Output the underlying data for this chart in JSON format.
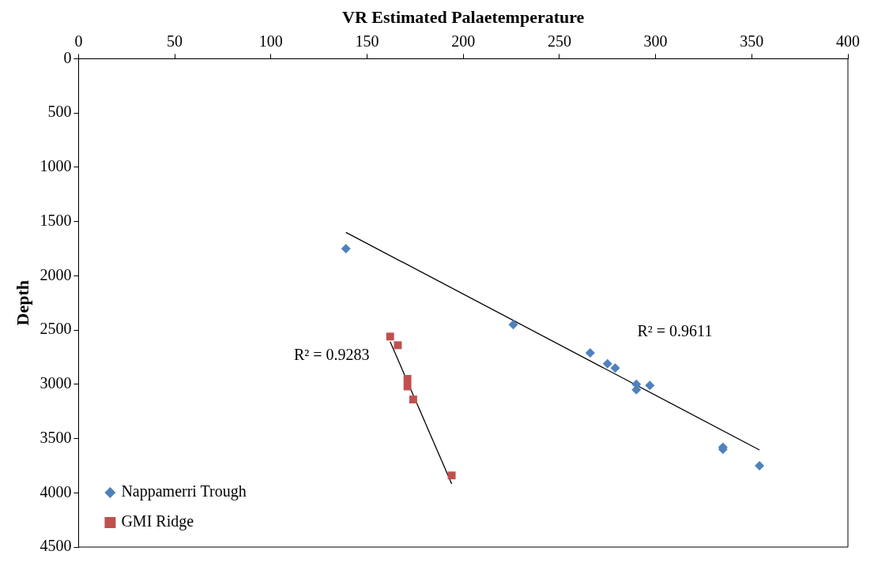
{
  "chart_data": {
    "type": "scatter",
    "xlabel": "VR Estimated Palaetemperature",
    "ylabel": "Depth",
    "xlim": [
      0,
      400
    ],
    "xticks": [
      0,
      50,
      100,
      150,
      200,
      250,
      300,
      350,
      400
    ],
    "ylim": [
      4500,
      0
    ],
    "yticks": [
      0,
      500,
      1000,
      1500,
      2000,
      2500,
      3000,
      3500,
      4000,
      4500
    ],
    "grid": false,
    "legend": "bottom left",
    "series": [
      {
        "name": "Nappamerri Trough",
        "color": "#4f81bd",
        "marker": "diamond",
        "x": [
          139,
          226,
          266,
          275,
          279,
          290,
          290,
          297,
          335,
          335,
          354
        ],
        "values": [
          1750,
          2450,
          2710,
          2810,
          2850,
          3000,
          3050,
          3010,
          3580,
          3600,
          3750
        ]
      },
      {
        "name": "GMI Ridge",
        "color": "#c0504d",
        "marker": "square",
        "x": [
          162,
          166,
          171,
          171,
          174,
          194
        ],
        "values": [
          2560,
          2640,
          2950,
          3020,
          3140,
          3840
        ]
      },
      {
        "type": "line",
        "color": "#000000",
        "marker": "none",
        "x": [
          139,
          354
        ],
        "values": [
          1600,
          3605
        ]
      },
      {
        "type": "line",
        "color": "#000000",
        "marker": "none",
        "x": [
          162,
          194
        ],
        "values": [
          2607,
          3918
        ]
      }
    ],
    "annotations": [
      "R² = 0.9611",
      "R² = 0.9283"
    ]
  }
}
